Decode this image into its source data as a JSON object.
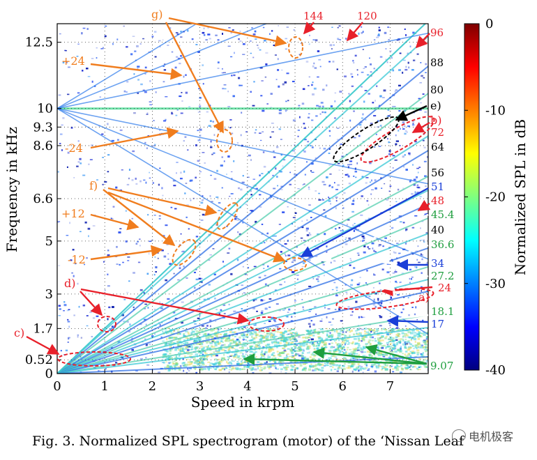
{
  "figure": {
    "caption": "Fig. 3.  Normalized SPL spectrogram (motor) of the ‘Nissan Leaf",
    "watermark": "电机极客"
  },
  "chart_data": {
    "type": "heatmap",
    "xlabel": "Speed in krpm",
    "ylabel": "Frequency  in kHz",
    "xlim": [
      0,
      7.8
    ],
    "ylim": [
      0,
      13.2
    ],
    "x_ticks": [
      0,
      1,
      2,
      3,
      4,
      5,
      6,
      7
    ],
    "y_ticks": [
      {
        "value": 0,
        "label": "0"
      },
      {
        "value": 0.52,
        "label": "0.52"
      },
      {
        "value": 1.7,
        "label": "1.7"
      },
      {
        "value": 3,
        "label": "3"
      },
      {
        "value": 5,
        "label": "5"
      },
      {
        "value": 6.6,
        "label": "6.6"
      },
      {
        "value": 8.6,
        "label": "8.6"
      },
      {
        "value": 9.3,
        "label": "9.3"
      },
      {
        "value": 10,
        "label": "10"
      },
      {
        "value": 12.5,
        "label": "12.5"
      }
    ],
    "colorbar": {
      "label": "Normalized SPL in dB",
      "range": [
        -40,
        0
      ],
      "ticks": [
        0,
        -10,
        -20,
        -30,
        -40
      ],
      "colormap": "jet"
    },
    "grid": true,
    "orders": [
      {
        "label": "96",
        "color": "#e8202a"
      },
      {
        "label": "88",
        "color": "#000000"
      },
      {
        "label": "80",
        "color": "#000000"
      },
      {
        "label": "72",
        "color": "#e8202a"
      },
      {
        "label": "64",
        "color": "#000000"
      },
      {
        "label": "56",
        "color": "#000000"
      },
      {
        "label": "51",
        "color": "#1a3fd8"
      },
      {
        "label": "48",
        "color": "#e8202a"
      },
      {
        "label": "45.4",
        "color": "#1e9e3e"
      },
      {
        "label": "40",
        "color": "#000000"
      },
      {
        "label": "36.6",
        "color": "#1e9e3e"
      },
      {
        "label": "34",
        "color": "#1a3fd8"
      },
      {
        "label": "27.2",
        "color": "#1e9e3e"
      },
      {
        "label": "24",
        "color": "#e8202a"
      },
      {
        "label": "18.1",
        "color": "#1e9e3e"
      },
      {
        "label": "17",
        "color": "#1a3fd8"
      },
      {
        "label": "9.07",
        "color": "#1e9e3e"
      }
    ],
    "top_orders": [
      {
        "label": "144",
        "color": "#e8202a"
      },
      {
        "label": "120",
        "color": "#e8202a"
      }
    ],
    "annotations": [
      {
        "label": "a)",
        "color": "#e8202a"
      },
      {
        "label": "b)",
        "color": "#e8202a"
      },
      {
        "label": "c)",
        "color": "#e8202a"
      },
      {
        "label": "d)",
        "color": "#e8202a"
      },
      {
        "label": "e)",
        "color": "#000000"
      },
      {
        "label": "f)",
        "color": "#f07d1e"
      },
      {
        "label": "g)",
        "color": "#f07d1e"
      },
      {
        "label": "+24",
        "color": "#f07d1e"
      },
      {
        "label": "-24",
        "color": "#f07d1e"
      },
      {
        "label": "+12",
        "color": "#f07d1e"
      },
      {
        "label": "-12",
        "color": "#f07d1e"
      }
    ]
  }
}
